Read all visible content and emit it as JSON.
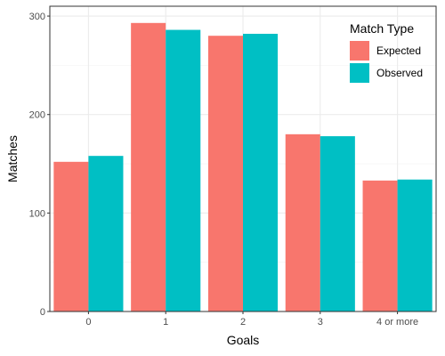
{
  "chart_data": {
    "type": "bar",
    "xlabel": "Goals",
    "ylabel": "Matches",
    "categories": [
      "0",
      "1",
      "2",
      "3",
      "4 or more"
    ],
    "ylim": [
      0,
      310
    ],
    "yticks": [
      0,
      100,
      200,
      300
    ],
    "grid": true,
    "legend": {
      "title": "Match Type",
      "placement": "top-right"
    },
    "series": [
      {
        "name": "Expected",
        "color": "#F8766D",
        "values": [
          152,
          293,
          280,
          180,
          133
        ]
      },
      {
        "name": "Observed",
        "color": "#00BFC4",
        "values": [
          158,
          286,
          282,
          178,
          134
        ]
      }
    ]
  }
}
